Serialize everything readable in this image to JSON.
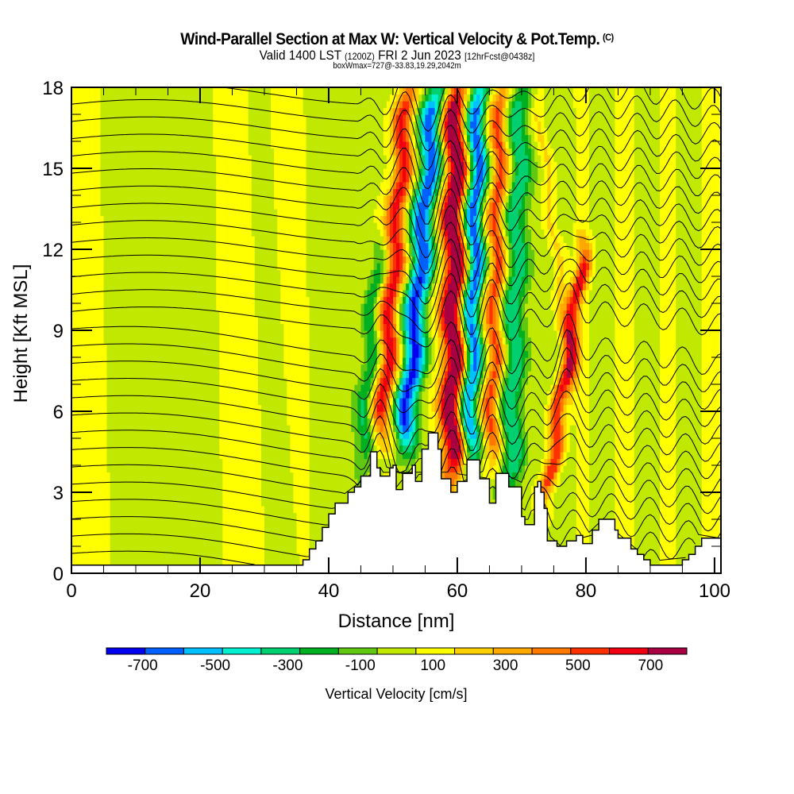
{
  "header": {
    "title": "Wind-Parallel Section at Max W: Vertical Velocity & Pot.Temp.",
    "copyright": "(C)",
    "valid_prefix": "Valid 1400 LST",
    "valid_utc": "(1200Z)",
    "valid_date": "FRI 2 Jun 2023",
    "forecast": "[12hrFcst@0438z]",
    "box_info": "boxWmax=727@-33.83,19.29,2042m"
  },
  "chart_data": {
    "type": "heatmap",
    "title": "Wind-Parallel Section at Max W: Vertical Velocity & Pot.Temp.",
    "subtitle": "Valid 1400 LST (1200Z) FRI 2 Jun 2023 [12hrFcst@0438z]",
    "xlabel": "Distance [nm]",
    "ylabel": "Height [Kft MSL]",
    "xlim": [
      0,
      101
    ],
    "ylim": [
      0,
      18
    ],
    "x_ticks": [
      0,
      20,
      40,
      60,
      80,
      100
    ],
    "y_ticks": [
      0,
      3,
      6,
      9,
      12,
      15,
      18
    ],
    "x_minor_step": 5,
    "y_minor_step": 1,
    "fill_variable": "Vertical Velocity [cm/s]",
    "contour_variable": "Potential Temperature",
    "colorbar": {
      "label": "Vertical Velocity [cm/s]",
      "bounds": [
        -800,
        -700,
        -600,
        -500,
        -400,
        -300,
        -200,
        -100,
        0,
        100,
        200,
        300,
        400,
        500,
        600,
        700,
        800
      ],
      "tick_labels": [
        "-700",
        "-500",
        "-300",
        "-100",
        "100",
        "300",
        "500",
        "700"
      ],
      "tick_values": [
        -700,
        -500,
        -300,
        -100,
        100,
        300,
        500,
        700
      ],
      "colors": [
        "#0000f0",
        "#0060ff",
        "#00c0ff",
        "#00f0d0",
        "#00d070",
        "#00b020",
        "#60c810",
        "#c0e800",
        "#ffff00",
        "#ffd000",
        "#ffa800",
        "#ff7800",
        "#ff3000",
        "#f00010",
        "#a80040"
      ]
    },
    "background_w_cms": 0,
    "w_features": [
      {
        "kind": "updraft",
        "x_nm": 48.0,
        "x_top_nm": 52.0,
        "w_max": 550,
        "width_nm": 1.6,
        "z_range_kft": [
          5,
          18
        ]
      },
      {
        "kind": "downdraft",
        "x_nm": 51.5,
        "x_top_nm": 56.5,
        "w_max": -700,
        "width_nm": 1.8,
        "z_range_kft": [
          4.5,
          18
        ]
      },
      {
        "kind": "updraft",
        "x_nm": 59.0,
        "x_top_nm": 59.5,
        "w_max": 727,
        "width_nm": 1.8,
        "z_range_kft": [
          3.5,
          18
        ]
      },
      {
        "kind": "downdraft",
        "x_nm": 61.5,
        "x_top_nm": 63.0,
        "w_max": -650,
        "width_nm": 1.5,
        "z_range_kft": [
          4,
          18
        ]
      },
      {
        "kind": "updraft",
        "x_nm": 65.0,
        "x_top_nm": 66.5,
        "w_max": 500,
        "width_nm": 1.5,
        "z_range_kft": [
          4,
          18
        ]
      },
      {
        "kind": "downdraft",
        "x_nm": 68.0,
        "x_top_nm": 69.5,
        "w_max": -350,
        "width_nm": 1.8,
        "z_range_kft": [
          3,
          18
        ]
      },
      {
        "kind": "updraft",
        "x_nm": 73.5,
        "x_top_nm": 79.5,
        "w_max": 550,
        "width_nm": 1.2,
        "z_range_kft": [
          2.5,
          12
        ]
      },
      {
        "kind": "updraft",
        "x_nm": 78.0,
        "x_top_nm": 72.0,
        "w_max": 180,
        "width_nm": 1.2,
        "z_range_kft": [
          6,
          18
        ]
      },
      {
        "kind": "downdraft",
        "x_nm": 45.0,
        "x_top_nm": 47.5,
        "w_max": -280,
        "width_nm": 1.2,
        "z_range_kft": [
          4,
          12
        ]
      }
    ],
    "terrain_kft": [
      [
        0,
        0.3
      ],
      [
        35.5,
        0.3
      ],
      [
        36,
        0.5
      ],
      [
        37,
        0.9
      ],
      [
        38,
        1.2
      ],
      [
        39,
        1.7
      ],
      [
        40,
        2.2
      ],
      [
        41,
        2.6
      ],
      [
        42.5,
        2.6
      ],
      [
        43,
        3.0
      ],
      [
        44,
        3.2
      ],
      [
        45,
        3.6
      ],
      [
        46.5,
        4.5
      ],
      [
        47,
        4.5
      ],
      [
        47.5,
        3.9
      ],
      [
        48,
        3.6
      ],
      [
        49,
        3.6
      ],
      [
        49.5,
        3.9
      ],
      [
        50,
        4.0
      ],
      [
        50.5,
        3.1
      ],
      [
        51,
        3.1
      ],
      [
        51.5,
        3.7
      ],
      [
        52.5,
        3.7
      ],
      [
        53,
        4.0
      ],
      [
        53.5,
        3.4
      ],
      [
        54,
        3.4
      ],
      [
        54.5,
        4.6
      ],
      [
        55,
        4.6
      ],
      [
        55.5,
        5.2
      ],
      [
        56.5,
        5.2
      ],
      [
        57,
        4.6
      ],
      [
        57.5,
        3.5
      ],
      [
        58.5,
        3.5
      ],
      [
        59,
        3.0
      ],
      [
        59.5,
        3.0
      ],
      [
        60,
        3.4
      ],
      [
        61,
        3.4
      ],
      [
        61.5,
        4.2
      ],
      [
        63,
        4.2
      ],
      [
        63.5,
        3.5
      ],
      [
        64.5,
        3.5
      ],
      [
        65,
        2.6
      ],
      [
        65.5,
        2.6
      ],
      [
        66,
        3.7
      ],
      [
        67.5,
        3.7
      ],
      [
        68,
        3.2
      ],
      [
        69.5,
        3.2
      ],
      [
        70,
        2.1
      ],
      [
        70.5,
        1.8
      ],
      [
        71.5,
        1.8
      ],
      [
        72,
        3.2
      ],
      [
        72.5,
        3.4
      ],
      [
        73,
        3.0
      ],
      [
        73.5,
        2.4
      ],
      [
        74,
        1.2
      ],
      [
        75,
        1.2
      ],
      [
        75.5,
        1.0
      ],
      [
        76.5,
        1.0
      ],
      [
        77,
        1.2
      ],
      [
        78,
        1.2
      ],
      [
        78.5,
        1.4
      ],
      [
        79,
        1.4
      ],
      [
        79.5,
        1.1
      ],
      [
        80.5,
        1.1
      ],
      [
        81,
        1.6
      ],
      [
        82,
        2.0
      ],
      [
        84,
        2.0
      ],
      [
        84.5,
        1.6
      ],
      [
        85,
        1.3
      ],
      [
        86,
        1.3
      ],
      [
        87,
        0.9
      ],
      [
        88,
        0.7
      ],
      [
        89,
        0.5
      ],
      [
        90,
        0.3
      ],
      [
        94,
        0.3
      ],
      [
        95,
        0.5
      ],
      [
        96,
        0.7
      ],
      [
        97,
        1.0
      ],
      [
        98,
        1.3
      ],
      [
        101,
        1.3
      ]
    ],
    "theta_contours": {
      "count": 28,
      "spacing_kft": 0.64,
      "base_kft": 0.6
    },
    "contour_labels_present": true
  }
}
